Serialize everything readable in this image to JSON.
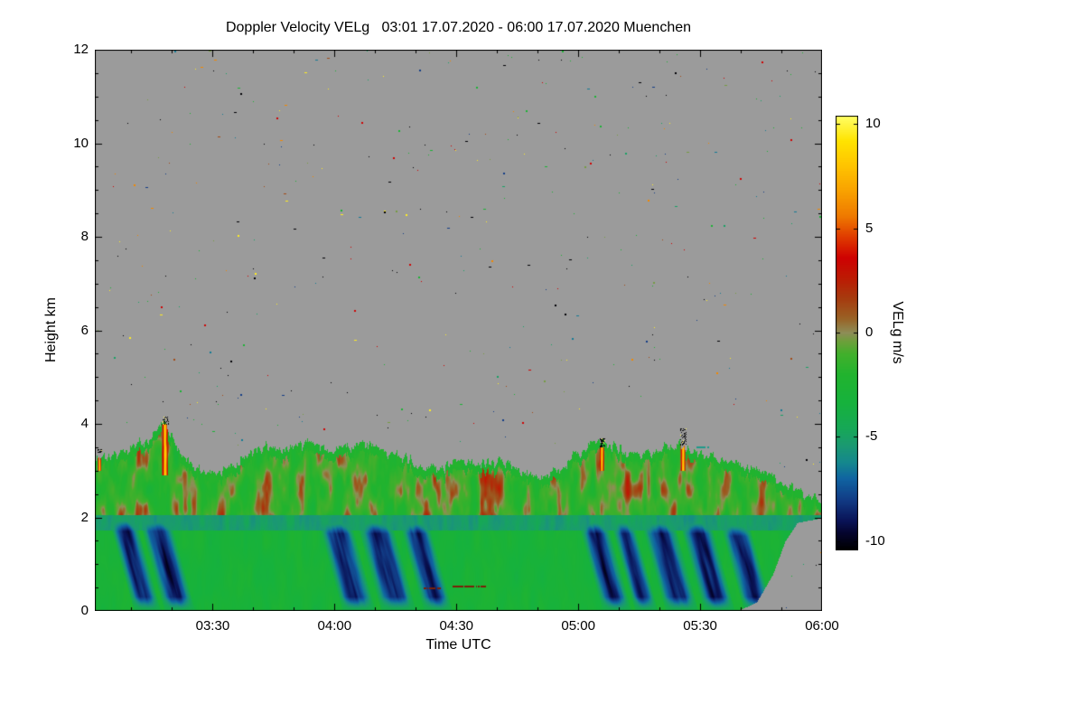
{
  "chart_data": {
    "type": "heatmap",
    "title": "Doppler Velocity VELg   03:01 17.07.2020 - 06:00 17.07.2020 Muenchen",
    "xlabel": "Time UTC",
    "ylabel": "Height km",
    "x_start": "03:01",
    "x_end": "06:00",
    "duration_minutes": 179,
    "x_ticks": [
      "03:30",
      "04:00",
      "04:30",
      "05:00",
      "05:30",
      "06:00"
    ],
    "x_tick_minutes": [
      29,
      59,
      89,
      119,
      149,
      179
    ],
    "ylim": [
      0,
      12
    ],
    "y_ticks": [
      0,
      2,
      4,
      6,
      8,
      10,
      12
    ],
    "no_data_color": "#9b9b9b",
    "colorbar": {
      "label": "VELg m/s",
      "min": -10,
      "max": 10,
      "range_abs": 10.4,
      "ticks": [
        10,
        5,
        0,
        -5,
        -10
      ],
      "stops": [
        [
          -10.4,
          "#000000"
        ],
        [
          -9.6,
          "#05052e"
        ],
        [
          -9.0,
          "#0a1458"
        ],
        [
          -8.0,
          "#123c86"
        ],
        [
          -7.0,
          "#1064a2"
        ],
        [
          -6.2,
          "#15888e"
        ],
        [
          -5.4,
          "#1b9a72"
        ],
        [
          -4.6,
          "#17a858"
        ],
        [
          -3.4,
          "#16b23e"
        ],
        [
          -2.0,
          "#22b42f"
        ],
        [
          -1.0,
          "#43b02c"
        ],
        [
          -0.4,
          "#6ea03c"
        ],
        [
          0.0,
          "#8e8e58"
        ],
        [
          0.7,
          "#9a6226"
        ],
        [
          1.6,
          "#a63e10"
        ],
        [
          2.6,
          "#bc1c04"
        ],
        [
          3.6,
          "#cf0202"
        ],
        [
          4.6,
          "#e03c00"
        ],
        [
          5.6,
          "#ef7a00"
        ],
        [
          6.8,
          "#f9a200"
        ],
        [
          8.0,
          "#ffc400"
        ],
        [
          9.2,
          "#ffe400"
        ],
        [
          10.4,
          "#ffff66"
        ]
      ]
    },
    "cloud": {
      "top_profile": [
        [
          0,
          3.25
        ],
        [
          4,
          3.3
        ],
        [
          8,
          3.45
        ],
        [
          12,
          3.6
        ],
        [
          15,
          3.8
        ],
        [
          17,
          4.0
        ],
        [
          19,
          3.7
        ],
        [
          22,
          3.2
        ],
        [
          26,
          2.95
        ],
        [
          30,
          2.9
        ],
        [
          34,
          3.1
        ],
        [
          38,
          3.35
        ],
        [
          42,
          3.5
        ],
        [
          46,
          3.45
        ],
        [
          50,
          3.55
        ],
        [
          54,
          3.6
        ],
        [
          58,
          3.45
        ],
        [
          62,
          3.5
        ],
        [
          66,
          3.55
        ],
        [
          70,
          3.45
        ],
        [
          74,
          3.35
        ],
        [
          78,
          3.2
        ],
        [
          82,
          3.05
        ],
        [
          86,
          3.1
        ],
        [
          90,
          3.2
        ],
        [
          94,
          3.15
        ],
        [
          98,
          3.2
        ],
        [
          102,
          3.1
        ],
        [
          106,
          2.95
        ],
        [
          110,
          2.9
        ],
        [
          114,
          3.0
        ],
        [
          118,
          3.3
        ],
        [
          122,
          3.6
        ],
        [
          125,
          3.7
        ],
        [
          128,
          3.5
        ],
        [
          131,
          3.35
        ],
        [
          134,
          3.3
        ],
        [
          137,
          3.4
        ],
        [
          140,
          3.5
        ],
        [
          143,
          3.6
        ],
        [
          146,
          3.45
        ],
        [
          149,
          3.35
        ],
        [
          152,
          3.3
        ],
        [
          155,
          3.2
        ],
        [
          158,
          3.15
        ],
        [
          161,
          3.05
        ],
        [
          164,
          3.0
        ],
        [
          167,
          2.9
        ],
        [
          170,
          2.7
        ],
        [
          173,
          2.55
        ],
        [
          176,
          2.45
        ],
        [
          179,
          2.35
        ]
      ],
      "base_profile": [
        [
          0,
          0
        ],
        [
          158,
          0
        ],
        [
          163,
          0.2
        ],
        [
          167,
          0.8
        ],
        [
          170,
          1.5
        ],
        [
          173,
          1.9
        ],
        [
          179,
          2.0
        ]
      ]
    },
    "streak_slope": 3.2,
    "fall_streaks": [
      {
        "t0": 3.5,
        "t1": 10,
        "top": 1.95
      },
      {
        "t0": 11,
        "t1": 18.5,
        "top": 1.95
      },
      {
        "t0": 55,
        "t1": 63,
        "top": 1.9
      },
      {
        "t0": 64.5,
        "t1": 73,
        "top": 1.9
      },
      {
        "t0": 75,
        "t1": 82,
        "top": 1.9
      },
      {
        "t0": 119,
        "t1": 126,
        "top": 1.9
      },
      {
        "t0": 127,
        "t1": 132.5,
        "top": 1.9
      },
      {
        "t0": 134.5,
        "t1": 142.5,
        "top": 1.9
      },
      {
        "t0": 144,
        "t1": 151.5,
        "top": 1.9
      },
      {
        "t0": 154,
        "t1": 161,
        "top": 1.85
      }
    ],
    "updraft_cells": [
      {
        "t": 1.2,
        "w": 0.9,
        "h0": 3.0,
        "h1": 3.4,
        "cap_h": 3.45
      },
      {
        "t": 17.3,
        "w": 1.6,
        "h0": 2.9,
        "h1": 4.0,
        "cap_h": 4.15
      },
      {
        "t": 124.8,
        "w": 1.2,
        "h0": 3.0,
        "h1": 3.5,
        "cap_h": 3.7
      },
      {
        "t": 144.8,
        "w": 1.3,
        "h0": 3.0,
        "h1": 3.55,
        "cap_h": 3.9
      }
    ],
    "dashes": [
      {
        "t0": 81,
        "t1": 85,
        "h": 0.5,
        "color": "#7a2008"
      },
      {
        "t0": 88,
        "t1": 96,
        "h": 0.55,
        "color": "#7a2008"
      },
      {
        "t0": 148,
        "t1": 151,
        "h": 3.52,
        "color": "#1f9a8a"
      }
    ],
    "speckles": {
      "count": 560,
      "seed": 9
    }
  }
}
